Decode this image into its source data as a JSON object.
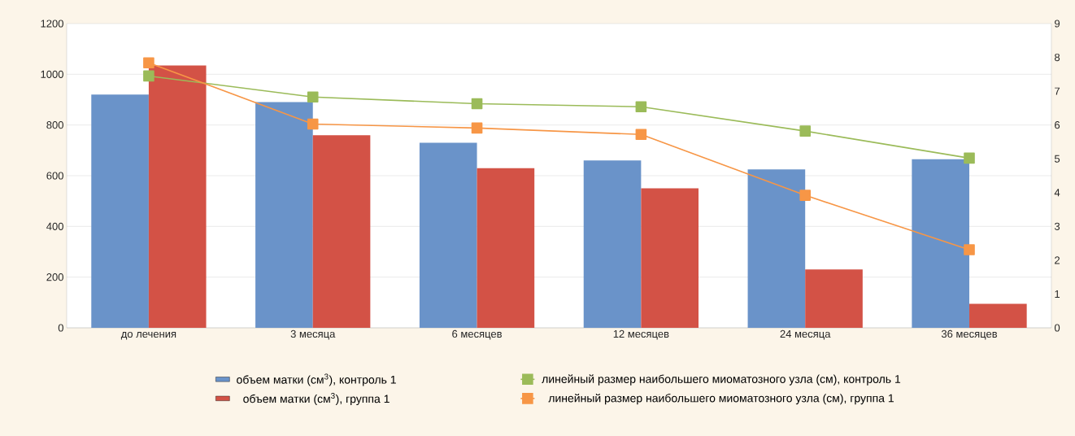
{
  "chart_data": {
    "type": "bar",
    "categories": [
      "до лечения",
      "3 месяца",
      "6 месяцев",
      "12 месяцев",
      "24 месяца",
      "36 месяцев"
    ],
    "series": [
      {
        "name": "объем матки (см$^{3}$), контроль 1",
        "color": "#6a93c9",
        "values": [
          920,
          890,
          730,
          660,
          625,
          665
        ]
      },
      {
        "name": "объем матки (см$^{3}$), группа 1",
        "color": "#d35246",
        "values": [
          1035,
          760,
          630,
          550,
          230,
          95
        ]
      },
      {
        "name": "линейный размер наибольшего миоматозного узла (см), контроль 1",
        "type": "line",
        "axis": "y2",
        "color": "#9bbb59",
        "values": [
          7.45,
          6.83,
          6.63,
          6.54,
          5.82,
          5.02
        ]
      },
      {
        "name": "линейный размер наибольшего миоматозного узла (см), группа 1",
        "type": "line",
        "axis": "y2",
        "color": "#f79646",
        "values": [
          7.84,
          6.03,
          5.91,
          5.72,
          3.92,
          2.31
        ]
      }
    ],
    "ylim": [
      0,
      1200
    ],
    "yticks": [
      0,
      200,
      400,
      600,
      800,
      1000,
      1200
    ],
    "y2lim": [
      0,
      9
    ],
    "y2ticks": [
      0,
      1,
      2,
      3,
      4,
      5,
      6,
      7,
      8,
      9
    ],
    "grid": "y",
    "legend": "bottom",
    "marker": "square",
    "line_style": "solid"
  }
}
